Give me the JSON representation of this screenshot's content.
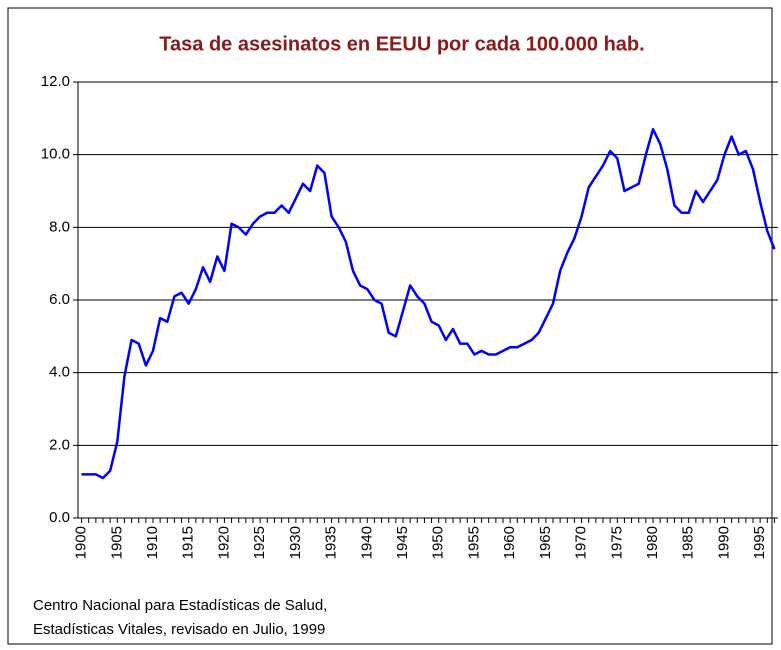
{
  "chart_data": {
    "type": "line",
    "title": "Tasa de asesinatos en EEUU por cada 100.000 hab.",
    "source": [
      "Centro Nacional para Estadísticas de Salud,",
      "Estadísticas Vitales, revisado en Julio, 1999"
    ],
    "x": [
      1900,
      1901,
      1902,
      1903,
      1904,
      1905,
      1906,
      1907,
      1908,
      1909,
      1910,
      1911,
      1912,
      1913,
      1914,
      1915,
      1916,
      1917,
      1918,
      1919,
      1920,
      1921,
      1922,
      1923,
      1924,
      1925,
      1926,
      1927,
      1928,
      1929,
      1930,
      1931,
      1932,
      1933,
      1934,
      1935,
      1936,
      1937,
      1938,
      1939,
      1940,
      1941,
      1942,
      1943,
      1944,
      1945,
      1946,
      1947,
      1948,
      1949,
      1950,
      1951,
      1952,
      1953,
      1954,
      1955,
      1956,
      1957,
      1958,
      1959,
      1960,
      1961,
      1962,
      1963,
      1964,
      1965,
      1966,
      1967,
      1968,
      1969,
      1970,
      1971,
      1972,
      1973,
      1974,
      1975,
      1976,
      1977,
      1978,
      1979,
      1980,
      1981,
      1982,
      1983,
      1984,
      1985,
      1986,
      1987,
      1988,
      1989,
      1990,
      1991,
      1992,
      1993,
      1994,
      1995,
      1996,
      1997
    ],
    "series": [
      {
        "color": "#0000ff",
        "values": [
          1.2,
          1.2,
          1.2,
          1.1,
          1.3,
          2.1,
          3.9,
          4.9,
          4.8,
          4.2,
          4.6,
          5.5,
          5.4,
          6.1,
          6.2,
          5.9,
          6.3,
          6.9,
          6.5,
          7.2,
          6.8,
          8.1,
          8.0,
          7.8,
          8.1,
          8.3,
          8.4,
          8.4,
          8.6,
          8.4,
          8.8,
          9.2,
          9.0,
          9.7,
          9.5,
          8.3,
          8.0,
          7.6,
          6.8,
          6.4,
          6.3,
          6.0,
          5.9,
          5.1,
          5.0,
          5.7,
          6.4,
          6.1,
          5.9,
          5.4,
          5.3,
          4.9,
          5.2,
          4.8,
          4.8,
          4.5,
          4.6,
          4.5,
          4.5,
          4.6,
          4.7,
          4.7,
          4.8,
          4.9,
          5.1,
          5.5,
          5.9,
          6.8,
          7.3,
          7.7,
          8.3,
          9.1,
          9.4,
          9.7,
          10.1,
          9.9,
          9.0,
          9.1,
          9.2,
          10.0,
          10.7,
          10.3,
          9.6,
          8.6,
          8.4,
          8.4,
          9.0,
          8.7,
          9.0,
          9.3,
          10.0,
          10.5,
          10.0,
          10.1,
          9.6,
          8.7,
          7.9,
          7.4
        ]
      }
    ],
    "xlim": [
      1899.5,
      1997.5
    ],
    "xticks": [
      1900,
      1905,
      1910,
      1915,
      1920,
      1925,
      1930,
      1935,
      1940,
      1945,
      1950,
      1955,
      1960,
      1965,
      1970,
      1975,
      1980,
      1985,
      1990,
      1995
    ],
    "ylim": [
      0,
      12
    ],
    "yticks": [
      {
        "value": 0,
        "label": "0.0"
      },
      {
        "value": 2,
        "label": "2.0"
      },
      {
        "value": 4,
        "label": "4.0"
      },
      {
        "value": 6,
        "label": "6.0"
      },
      {
        "value": 8,
        "label": "8.0"
      },
      {
        "value": 10,
        "label": "10.0"
      },
      {
        "value": 12,
        "label": "12.0"
      }
    ],
    "grid": true
  }
}
